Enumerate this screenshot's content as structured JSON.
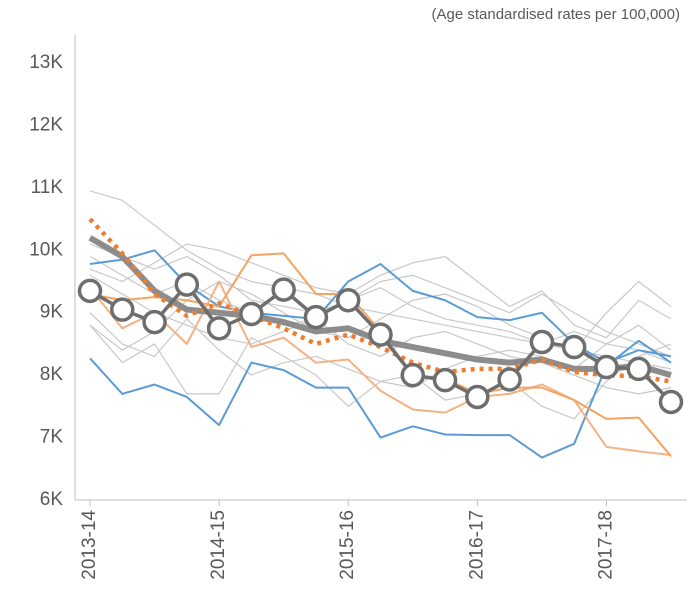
{
  "chart_data": {
    "type": "line",
    "subtitle": "(Age standardised rates per 100,000)",
    "categories": [
      "2013-14",
      null,
      null,
      null,
      "2014-15",
      null,
      null,
      null,
      "2015-16",
      null,
      null,
      null,
      "2016-17",
      null,
      null,
      null,
      "2017-18",
      null,
      null
    ],
    "ylim": [
      6000,
      13000
    ],
    "yticks": [
      {
        "value": 6000,
        "label": "6K"
      },
      {
        "value": 7000,
        "label": "7K"
      },
      {
        "value": 8000,
        "label": "8K"
      },
      {
        "value": 9000,
        "label": "9K"
      },
      {
        "value": 10000,
        "label": "10K"
      },
      {
        "value": 11000,
        "label": "11K"
      },
      {
        "value": 12000,
        "label": "12K"
      },
      {
        "value": 13000,
        "label": "13K"
      }
    ],
    "grid": false,
    "series": [
      {
        "color": "#c8c8c8",
        "style": "thin",
        "values": [
          10950,
          10800,
          10400,
          10000,
          9700,
          9500,
          9400,
          9300,
          9100,
          9000,
          8900,
          8800,
          8700,
          8600,
          8500,
          8400,
          8300,
          8200,
          8100
        ]
      },
      {
        "color": "#c8c8c8",
        "style": "thin",
        "values": [
          9700,
          9500,
          9800,
          10100,
          10000,
          9800,
          9600,
          9400,
          9300,
          9600,
          9800,
          9900,
          9500,
          9100,
          9350,
          8800,
          8600,
          9200,
          8900
        ]
      },
      {
        "color": "#c8c8c8",
        "style": "thin",
        "values": [
          8800,
          8400,
          8700,
          9200,
          9500,
          9300,
          9000,
          8700,
          8600,
          8900,
          9200,
          9300,
          9100,
          8800,
          8600,
          8400,
          9000,
          9500,
          9100
        ]
      },
      {
        "color": "#c8c8c8",
        "style": "thin",
        "values": [
          8800,
          8200,
          8500,
          7700,
          7700,
          8600,
          8300,
          8000,
          7500,
          7900,
          8000,
          7600,
          7700,
          7900,
          7500,
          7300,
          7900,
          8300,
          8500
        ]
      },
      {
        "color": "#c8c8c8",
        "style": "thin",
        "values": [
          9600,
          9300,
          9000,
          8800,
          8600,
          8500,
          8700,
          8900,
          8500,
          8300,
          8600,
          8700,
          8500,
          8300,
          8200,
          8000,
          7800,
          7700,
          7800
        ]
      },
      {
        "color": "#c8c8c8",
        "style": "thin",
        "values": [
          10100,
          9900,
          9700,
          9900,
          9600,
          9200,
          9100,
          9000,
          9200,
          9500,
          9600,
          9400,
          9200,
          9000,
          9300,
          9000,
          8700,
          8500,
          8300
        ]
      },
      {
        "color": "#c8c8c8",
        "style": "thin",
        "values": [
          9000,
          8500,
          8300,
          8900,
          8400,
          8000,
          8200,
          8300,
          8100,
          7900,
          7800,
          8100,
          8300,
          8400,
          8300,
          8100,
          8500,
          8800,
          8400
        ]
      },
      {
        "color": "#c8c8c8",
        "style": "thin",
        "values": [
          9900,
          9600,
          9300,
          9500,
          9200,
          9000,
          8800,
          8900,
          9200,
          9400,
          9100,
          8900,
          8800,
          8700,
          8500,
          8700,
          8500,
          8400,
          8200
        ]
      },
      {
        "color": "#5b9bd5",
        "style": "medium",
        "values": [
          9780,
          9850,
          10000,
          9450,
          9100,
          9000,
          8950,
          8900,
          9500,
          9780,
          9350,
          9200,
          8930,
          8880,
          9000,
          8500,
          8200,
          8400,
          8300
        ]
      },
      {
        "color": "#5b9bd5",
        "style": "medium",
        "values": [
          8270,
          7700,
          7850,
          7650,
          7200,
          8200,
          8080,
          7800,
          7800,
          7000,
          7180,
          7050,
          7040,
          7040,
          6680,
          6900,
          8150,
          8550,
          8200
        ]
      },
      {
        "color": "#f4b183",
        "style": "medium",
        "values": [
          9400,
          8750,
          9000,
          8500,
          9500,
          8450,
          8600,
          8200,
          8250,
          7750,
          7450,
          7400,
          7650,
          7700,
          7850,
          7600,
          6850,
          6780,
          6720
        ]
      },
      {
        "color": "#f4a460",
        "style": "medium",
        "values": [
          9300,
          9200,
          9250,
          9200,
          9100,
          9920,
          9950,
          9300,
          9300,
          8700,
          8000,
          7950,
          7700,
          7800,
          7800,
          7600,
          7300,
          7320,
          6700
        ]
      },
      {
        "color": "#8c8c8c",
        "style": "thick",
        "values": [
          10200,
          9900,
          9350,
          9050,
          9000,
          8950,
          8850,
          8700,
          8750,
          8550,
          8450,
          8350,
          8250,
          8200,
          8250,
          8100,
          8100,
          8150,
          8000
        ]
      },
      {
        "color": "#ed7d31",
        "style": "dotted",
        "values": [
          10500,
          9950,
          9300,
          8950,
          9150,
          8950,
          8750,
          8500,
          8650,
          8450,
          8200,
          8050,
          8100,
          8100,
          8250,
          8050,
          8000,
          7980,
          7900
        ]
      },
      {
        "color": "#6e6e6e",
        "style": "markers",
        "values": [
          9350,
          9050,
          8850,
          9450,
          8750,
          8980,
          9370,
          8930,
          9200,
          8650,
          8000,
          7920,
          7650,
          7930,
          8530,
          8450,
          8130,
          8100,
          7570
        ]
      }
    ]
  }
}
